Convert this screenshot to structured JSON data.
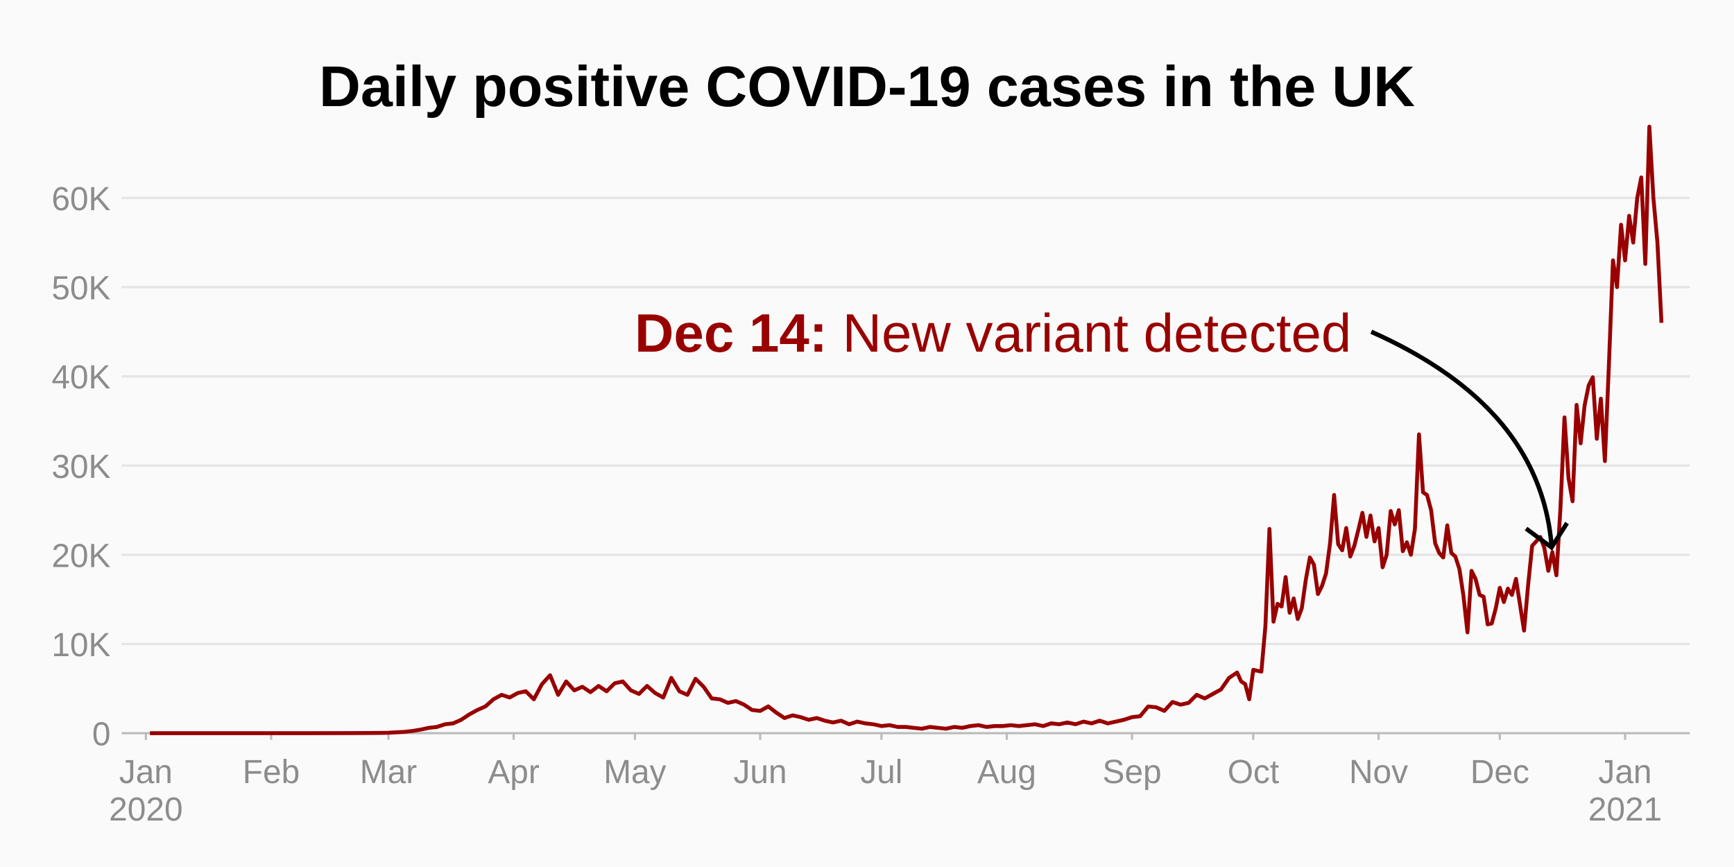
{
  "chart_data": {
    "type": "line",
    "title": "Daily positive COVID-19 cases in the UK",
    "color": "#990000",
    "x": [
      1,
      20,
      40,
      50,
      55,
      58,
      60,
      62,
      64,
      66,
      68,
      70,
      72,
      74,
      76,
      78,
      80,
      82,
      84,
      86,
      88,
      90,
      92,
      94,
      96,
      98,
      100,
      102,
      104,
      106,
      108,
      110,
      112,
      114,
      116,
      118,
      120,
      122,
      124,
      126,
      128,
      130,
      132,
      134,
      136,
      138,
      140,
      142,
      144,
      146,
      148,
      150,
      152,
      154,
      156,
      158,
      160,
      162,
      164,
      166,
      168,
      170,
      172,
      174,
      176,
      178,
      180,
      182,
      184,
      186,
      188,
      190,
      192,
      194,
      196,
      198,
      200,
      202,
      204,
      206,
      208,
      210,
      212,
      214,
      216,
      218,
      220,
      222,
      224,
      226,
      228,
      230,
      232,
      234,
      236,
      238,
      240,
      242,
      244,
      246,
      248,
      250,
      252,
      254,
      256,
      258,
      260,
      262,
      264,
      266,
      268,
      270,
      271,
      272,
      273,
      274,
      275,
      276,
      277,
      278,
      279,
      280,
      281,
      282,
      283,
      284,
      285,
      286,
      287,
      288,
      289,
      290,
      291,
      292,
      293,
      294,
      295,
      296,
      297,
      298,
      299,
      300,
      301,
      302,
      303,
      304,
      305,
      306,
      307,
      308,
      309,
      310,
      311,
      312,
      313,
      314,
      315,
      316,
      317,
      318,
      319,
      320,
      321,
      322,
      323,
      324,
      325,
      326,
      327,
      328,
      329,
      330,
      331,
      332,
      333,
      334,
      335,
      336,
      337,
      338,
      339,
      340,
      341,
      342,
      343,
      344,
      345,
      346,
      347,
      348,
      349,
      350,
      351,
      352,
      353,
      354,
      355,
      356,
      357,
      358,
      359,
      360,
      361,
      362,
      363,
      364,
      365,
      366,
      367,
      368,
      369,
      370,
      371,
      372,
      373,
      374,
      375
    ],
    "values": [
      0,
      0,
      0,
      10,
      20,
      30,
      50,
      100,
      150,
      250,
      400,
      600,
      700,
      1000,
      1100,
      1500,
      2100,
      2600,
      3000,
      3800,
      4300,
      4000,
      4500,
      4700,
      3800,
      5500,
      6500,
      4300,
      5800,
      4800,
      5200,
      4600,
      5300,
      4700,
      5600,
      5800,
      4800,
      4400,
      5300,
      4500,
      4000,
      6200,
      4700,
      4300,
      6100,
      5200,
      3900,
      3800,
      3400,
      3600,
      3200,
      2600,
      2500,
      3000,
      2300,
      1700,
      2000,
      1800,
      1500,
      1700,
      1400,
      1200,
      1400,
      1000,
      1300,
      1100,
      1000,
      800,
      900,
      700,
      700,
      600,
      500,
      700,
      600,
      500,
      700,
      600,
      800,
      900,
      700,
      800,
      800,
      900,
      800,
      900,
      1000,
      800,
      1100,
      1000,
      1200,
      1000,
      1300,
      1100,
      1400,
      1100,
      1300,
      1500,
      1800,
      1900,
      3000,
      2900,
      2500,
      3500,
      3200,
      3400,
      4300,
      3900,
      4400,
      4900,
      6200,
      6800,
      5800,
      5500,
      3800,
      7100,
      7000,
      6900,
      12000,
      22900,
      12500,
      14500,
      14200,
      17500,
      13500,
      15100,
      12800,
      14000,
      17200,
      19700,
      18900,
      15600,
      16500,
      17900,
      21300,
      26700,
      21200,
      20500,
      23000,
      19800,
      21000,
      22800,
      24700,
      22000,
      24400,
      21500,
      23000,
      18600,
      20000,
      24900,
      23400,
      25000,
      20400,
      21400,
      20000,
      22900,
      33500,
      27000,
      26700,
      25000,
      21300,
      20200,
      19700,
      23300,
      20200,
      19800,
      18400,
      15400,
      11300,
      18200,
      17300,
      15500,
      15300,
      12200,
      12300,
      14000,
      16300,
      14700,
      16200,
      15500,
      17300,
      14400,
      11500,
      16600,
      21000,
      21500,
      22000,
      20800,
      18200,
      20300,
      17700,
      25200,
      35400,
      28600,
      26000,
      36800,
      32500,
      36800,
      39000,
      39900,
      33000,
      37500,
      30500,
      41400,
      53000,
      50000,
      57000,
      53000,
      58000,
      55000,
      60000,
      62300,
      52600,
      68000,
      60000,
      55000,
      46000
    ],
    "xlim": [
      -6,
      382
    ],
    "xticks": [
      {
        "value": 0,
        "label": "Jan"
      },
      {
        "value": 31,
        "label": "Feb"
      },
      {
        "value": 60,
        "label": "Mar"
      },
      {
        "value": 91,
        "label": "Apr"
      },
      {
        "value": 121,
        "label": "May"
      },
      {
        "value": 152,
        "label": "Jun"
      },
      {
        "value": 182,
        "label": "Jul"
      },
      {
        "value": 213,
        "label": "Aug"
      },
      {
        "value": 244,
        "label": "Sep"
      },
      {
        "value": 274,
        "label": "Oct"
      },
      {
        "value": 305,
        "label": "Nov"
      },
      {
        "value": 335,
        "label": "Dec"
      },
      {
        "value": 366,
        "label": "Jan"
      }
    ],
    "year_labels": [
      {
        "value": 0,
        "label": "2020"
      },
      {
        "value": 366,
        "label": "2021"
      }
    ],
    "ylim": [
      0,
      70000
    ],
    "yticks": [
      0,
      {
        "value": 10000,
        "label": "10K"
      },
      {
        "value": 20000,
        "label": "20K"
      },
      {
        "value": 30000,
        "label": "30K"
      },
      {
        "value": 40000,
        "label": "40K"
      },
      {
        "value": 50000,
        "label": "50K"
      },
      {
        "value": 60000,
        "label": "60K"
      }
    ],
    "grid": true,
    "annotation": {
      "x": 348,
      "bold": "Dec 14:",
      "text": "New variant detected"
    }
  }
}
